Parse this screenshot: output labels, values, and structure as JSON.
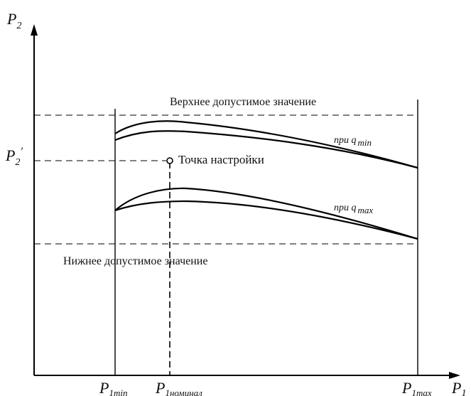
{
  "axes": {
    "y_label": "P",
    "y_label_sub": "2",
    "x_label": "P",
    "x_label_sub": "1"
  },
  "y_tick": {
    "label": "P",
    "sub": "2",
    "prime": "′"
  },
  "x_ticks": [
    {
      "main": "P",
      "sub": "1min"
    },
    {
      "main": "P",
      "sub": "1номинал"
    },
    {
      "main": "P",
      "sub": "1max"
    }
  ],
  "annotations": {
    "upper_limit": "Верхнее допустимое значение",
    "lower_limit": "Нижнее допустимое значение",
    "setpoint": "Точка настройки",
    "q_min_prefix": "при q",
    "q_min_sub": "min",
    "q_max_prefix": "при q",
    "q_max_sub": "max"
  }
}
